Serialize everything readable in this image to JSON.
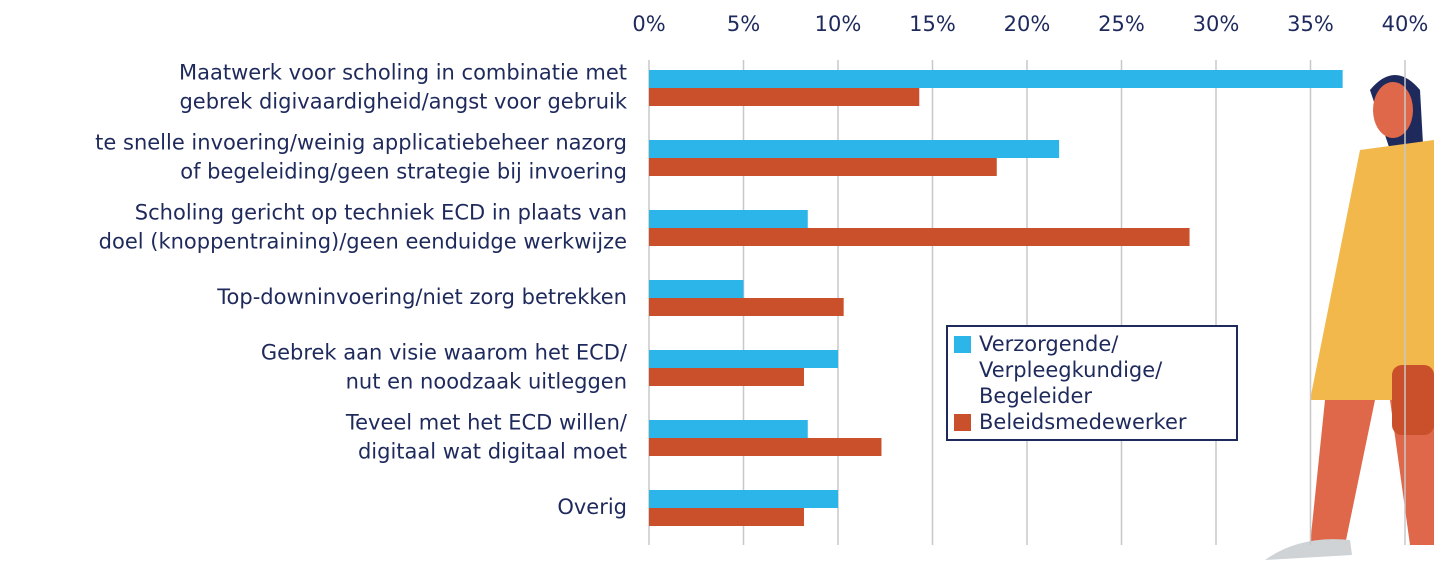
{
  "chart_data": {
    "type": "hbar",
    "categories": [
      [
        "Maatwerk voor scholing in combinatie met",
        "gebrek digivaardigheid/angst voor gebruik"
      ],
      [
        "te snelle invoering/weinig applicatiebeheer nazorg",
        "of begeleiding/geen strategie bij invoering"
      ],
      [
        "Scholing gericht op techniek ECD in plaats van",
        "doel (knoppentraining)/geen eenduidge werkwijze"
      ],
      [
        "Top-downinvoering/niet zorg betrekken"
      ],
      [
        "Gebrek aan visie waarom het ECD/",
        "nut en noodzaak uitleggen"
      ],
      [
        "Teveel met het ECD willen/",
        "digitaal wat digitaal moet"
      ],
      [
        "Overig"
      ]
    ],
    "series": [
      {
        "name": "Verzorgende/ Verpleegkundige/ Begeleider",
        "color": "#2bb5e8",
        "values": [
          36.7,
          21.7,
          8.4,
          5.0,
          10.0,
          8.4,
          10.0
        ]
      },
      {
        "name": "Beleidsmedewerker",
        "color": "#c9502a",
        "values": [
          14.3,
          18.4,
          28.6,
          10.3,
          8.2,
          12.3,
          8.2
        ]
      }
    ],
    "xlim": [
      0,
      40
    ],
    "xticks": [
      {
        "value": 0,
        "label": "0%"
      },
      {
        "value": 5,
        "label": "5%"
      },
      {
        "value": 10,
        "label": "10%"
      },
      {
        "value": 15,
        "label": "15%"
      },
      {
        "value": 20,
        "label": "20%"
      },
      {
        "value": 25,
        "label": "25%"
      },
      {
        "value": 30,
        "label": "30%"
      },
      {
        "value": 35,
        "label": "35%"
      },
      {
        "value": 40,
        "label": "40%"
      }
    ],
    "grid": true
  }
}
